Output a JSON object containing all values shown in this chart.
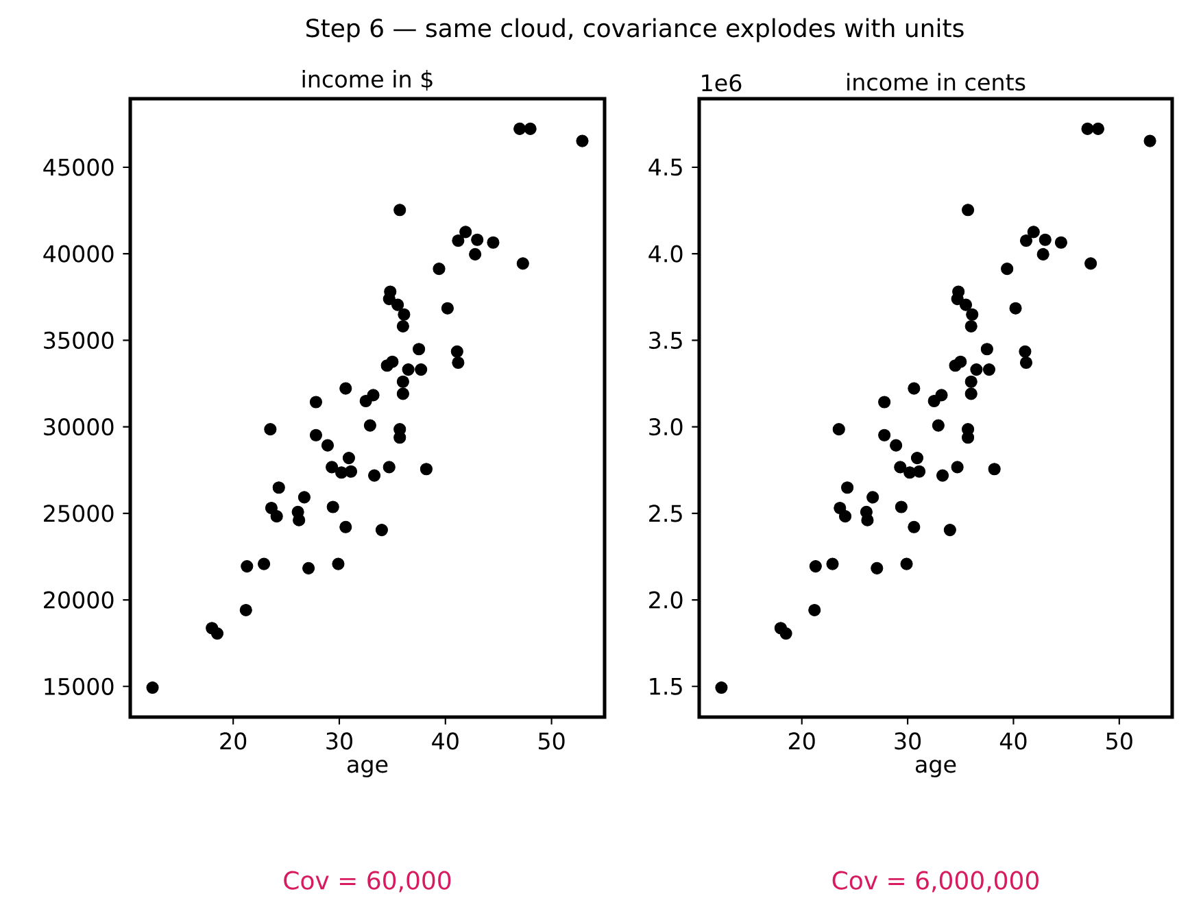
{
  "chart_data": [
    {
      "type": "scatter",
      "title": "income in $",
      "xlabel": "age",
      "marker": "circle",
      "color": "#000000",
      "annotations": [
        "Step 6 — same cloud, covariance explodes with units",
        "Cov = 60,000"
      ],
      "xlim": [
        10.3,
        55.0
      ],
      "xticks": [
        20,
        30,
        40,
        50
      ],
      "ylim": [
        13230,
        48960
      ],
      "yticks": [
        15000,
        20000,
        25000,
        30000,
        35000,
        40000,
        45000
      ],
      "x": [
        12.4,
        18.0,
        18.5,
        21.2,
        21.3,
        22.9,
        23.5,
        23.6,
        24.1,
        24.3,
        26.1,
        26.2,
        26.7,
        27.1,
        27.8,
        27.8,
        28.9,
        29.3,
        29.4,
        29.9,
        30.2,
        30.6,
        30.9,
        31.1,
        30.6,
        32.5,
        33.2,
        32.9,
        33.3,
        34.0,
        34.5,
        35.0,
        34.7,
        34.7,
        34.8,
        35.5,
        36.1,
        36.0,
        35.7,
        35.7,
        35.7,
        36.0,
        36.0,
        36.5,
        37.5,
        37.7,
        38.2,
        39.4,
        40.2,
        41.1,
        41.2,
        41.2,
        41.9,
        42.8,
        43.0,
        44.5,
        47.3,
        47.0,
        48.0,
        52.9
      ],
      "values": [
        14930,
        18370,
        18060,
        19410,
        21940,
        22080,
        29860,
        25310,
        24830,
        26490,
        25080,
        24610,
        25930,
        21830,
        31430,
        29520,
        28930,
        27670,
        25370,
        22080,
        27360,
        32220,
        28200,
        27420,
        24210,
        31490,
        31830,
        30080,
        27190,
        24040,
        33540,
        33760,
        27670,
        37390,
        37810,
        37050,
        36490,
        35810,
        42530,
        29860,
        29380,
        32610,
        31910,
        33310,
        34490,
        33310,
        27560,
        39130,
        36850,
        34350,
        33710,
        40760,
        41260,
        39970,
        40810,
        40650,
        39440,
        47220,
        47220,
        46520
      ]
    },
    {
      "type": "scatter",
      "title": "income in cents",
      "xlabel": "age",
      "marker": "circle",
      "color": "#000000",
      "annotations": [
        "1e6",
        "Cov = 6,000,000"
      ],
      "xlim": [
        10.3,
        55.0
      ],
      "xticks": [
        20,
        30,
        40,
        50
      ],
      "ylim": [
        1.323,
        4.896
      ],
      "yticks": [
        1.5,
        {
          "value": 2,
          "label": "2.0"
        },
        2.5,
        {
          "value": 3,
          "label": "3.0"
        },
        3.5,
        {
          "value": 4,
          "label": "4.0"
        },
        4.5
      ],
      "x": [
        12.4,
        18.0,
        18.5,
        21.2,
        21.3,
        22.9,
        23.5,
        23.6,
        24.1,
        24.3,
        26.1,
        26.2,
        26.7,
        27.1,
        27.8,
        27.8,
        28.9,
        29.3,
        29.4,
        29.9,
        30.2,
        30.6,
        30.9,
        31.1,
        30.6,
        32.5,
        33.2,
        32.9,
        33.3,
        34.0,
        34.5,
        35.0,
        34.7,
        34.7,
        34.8,
        35.5,
        36.1,
        36.0,
        35.7,
        35.7,
        35.7,
        36.0,
        36.0,
        36.5,
        37.5,
        37.7,
        38.2,
        39.4,
        40.2,
        41.1,
        41.2,
        41.2,
        41.9,
        42.8,
        43.0,
        44.5,
        47.3,
        47.0,
        48.0,
        52.9
      ],
      "values": [
        1.493,
        1.837,
        1.806,
        1.941,
        2.194,
        2.208,
        2.986,
        2.531,
        2.483,
        2.649,
        2.508,
        2.461,
        2.593,
        2.183,
        3.143,
        2.952,
        2.893,
        2.767,
        2.537,
        2.208,
        2.736,
        3.222,
        2.82,
        2.742,
        2.421,
        3.149,
        3.183,
        3.008,
        2.719,
        2.404,
        3.354,
        3.376,
        2.767,
        3.739,
        3.781,
        3.705,
        3.649,
        3.581,
        4.253,
        2.986,
        2.938,
        3.261,
        3.191,
        3.331,
        3.449,
        3.331,
        2.756,
        3.913,
        3.685,
        3.435,
        3.371,
        4.076,
        4.126,
        3.997,
        4.081,
        4.065,
        3.944,
        4.722,
        4.722,
        4.652
      ]
    }
  ]
}
